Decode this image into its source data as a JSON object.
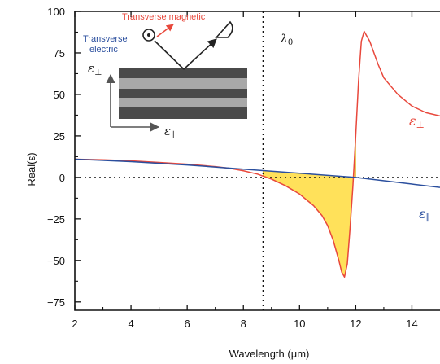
{
  "chart_data": {
    "type": "line",
    "xlabel": "Wavelength (μm)",
    "ylabel": "Real(ε)",
    "xlim": [
      2,
      15
    ],
    "ylim": [
      -80,
      100
    ],
    "x_ticks": [
      2,
      4,
      6,
      8,
      10,
      12,
      14
    ],
    "x_tick_labels": [
      "2",
      "4",
      "6",
      "8",
      "10",
      "12",
      "14"
    ],
    "y_ticks": [
      -75,
      -50,
      -25,
      0,
      25,
      50,
      75,
      100
    ],
    "y_tick_labels": [
      "−75",
      "−50",
      "−25",
      "0",
      "25",
      "50",
      "75",
      "100"
    ],
    "series": [
      {
        "name": "ε⊥",
        "color": "#e8483c",
        "x": [
          2,
          3,
          4,
          5,
          6,
          7,
          7.5,
          8,
          8.5,
          9,
          9.5,
          10,
          10.5,
          10.8,
          11,
          11.2,
          11.4,
          11.5,
          11.6,
          11.7,
          11.8,
          11.9,
          12,
          12.1,
          12.2,
          12.3,
          12.5,
          12.8,
          13,
          13.5,
          14,
          14.5,
          15
        ],
        "values": [
          11,
          10.6,
          10,
          9,
          8,
          6.5,
          5.5,
          4,
          2,
          -1,
          -5,
          -10,
          -17,
          -23,
          -29,
          -38,
          -50,
          -57,
          -60,
          -52,
          -30,
          -5,
          25,
          58,
          82,
          88,
          82,
          68,
          60,
          50,
          43,
          39,
          37
        ]
      },
      {
        "name": "ε∥",
        "color": "#2b4f9e",
        "x": [
          2,
          4,
          6,
          8,
          10,
          12,
          14,
          15
        ],
        "values": [
          11,
          9.5,
          7.5,
          5,
          2.5,
          0,
          -4,
          -6
        ]
      }
    ],
    "shaded_region": {
      "between": [
        "ε∥",
        "ε⊥"
      ],
      "x_range": [
        8.7,
        12
      ],
      "color": "#ffe15a"
    },
    "vline": {
      "x": 8.7,
      "label": "λ0",
      "style": "dotted"
    },
    "hline": {
      "y": 0,
      "style": "dotted"
    },
    "legend": "inline labels at right"
  },
  "inset": {
    "tm_label": "Transverse magnetic",
    "te_label_1": "Transverse",
    "te_label_2": "electric",
    "eps_perp_axis_label": "ε⊥",
    "eps_par_axis_label": "ε∥",
    "layer_colors": [
      "#4a4a4a",
      "#a8a8a8"
    ],
    "tm_color": "#e8483c",
    "te_color": "#2b4f9e"
  }
}
